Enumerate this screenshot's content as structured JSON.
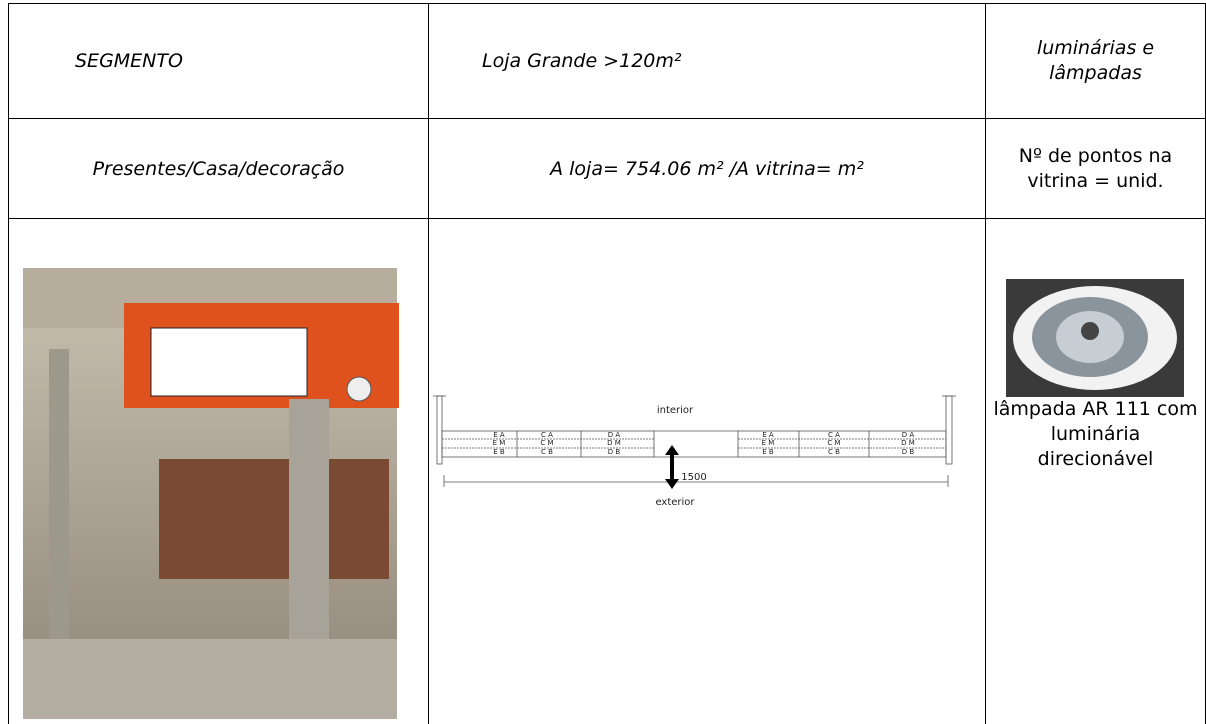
{
  "table": {
    "rows": [
      [
        "SEGMENTO",
        "Loja Grande >120m²",
        "luminárias e lâmpadas"
      ],
      [
        "Presentes/Casa/decoração",
        "A loja= 754.06 m² /A vitrina= m²",
        "Nº de pontos na vitrina = unid."
      ]
    ]
  },
  "diagram": {
    "interior": "interior",
    "exterior": "exterior",
    "dimension": "1500",
    "zones": [
      [
        "E A",
        "C A",
        "D A"
      ],
      [
        "E M",
        "C M",
        "D M"
      ],
      [
        "E B",
        "C B",
        "D B"
      ]
    ]
  },
  "lamp_caption": "lâmpada AR 111 com luminária direcionável"
}
